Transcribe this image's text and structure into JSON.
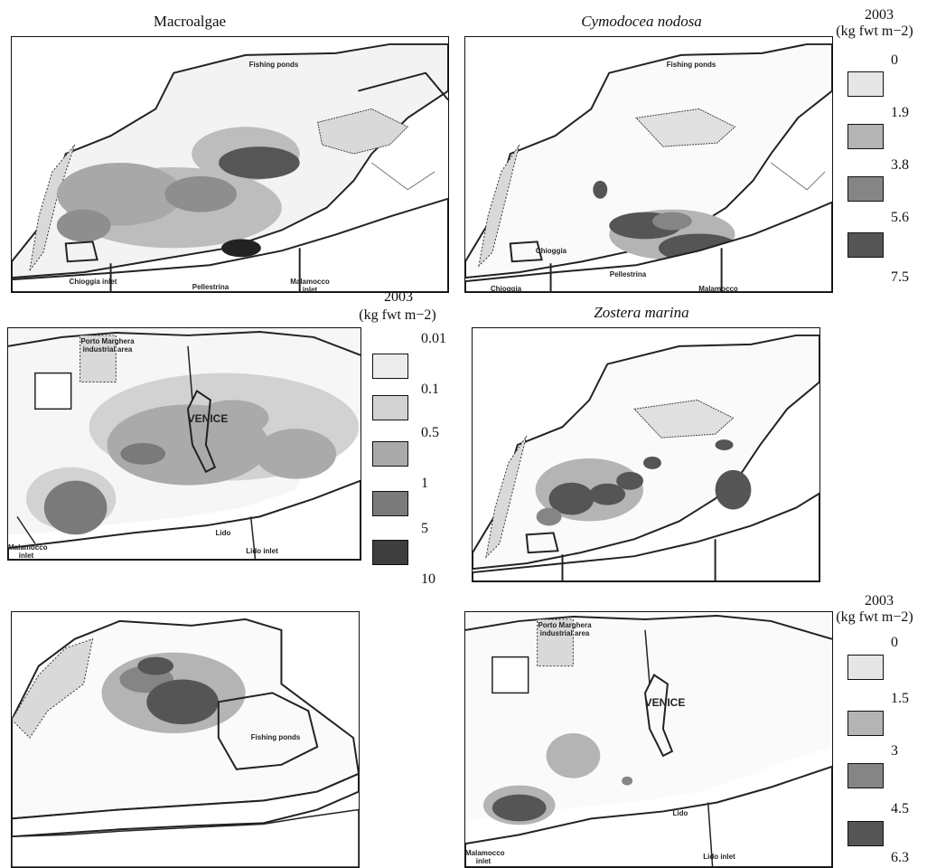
{
  "titles": {
    "macroalgae": "Macroalgae",
    "cymodocea": "Cymodocea nodosa",
    "zostera": "Zostera marina"
  },
  "legends": {
    "cymodocea": {
      "year": "2003",
      "unit": "(kg fwt m−2)",
      "ticks": [
        "0",
        "1.9",
        "3.8",
        "5.6",
        "7.5"
      ],
      "colors": [
        "#e6e6e6",
        "#b4b4b4",
        "#858585",
        "#555555"
      ]
    },
    "macroalgae": {
      "year": "2003",
      "unit": "(kg fwt m−2)",
      "ticks": [
        "0.01",
        "0.1",
        "0.5",
        "1",
        "5",
        "10"
      ],
      "colors": [
        "#ececec",
        "#d2d2d2",
        "#aaaaaa",
        "#7a7a7a",
        "#3e3e3e"
      ]
    },
    "zostera": {
      "year": "2003",
      "unit": "(kg fwt m−2)",
      "ticks": [
        "0",
        "1.5",
        "3",
        "4.5",
        "6.3"
      ],
      "colors": [
        "#e6e6e6",
        "#b4b4b4",
        "#858585",
        "#555555"
      ]
    }
  },
  "map_labels": {
    "fishing_ponds": "Fishing ponds",
    "pellestrina": "Pellestrina",
    "chioggia": "Chioggia",
    "chioggia_inlet": "Chioggia inlet",
    "malamocco_inlet": "Malamocco inlet",
    "porto_marghera": "Porto Marghera industrial area",
    "venice": "VENICE",
    "lido": "Lido",
    "lido_inlet": "Lido inlet"
  }
}
